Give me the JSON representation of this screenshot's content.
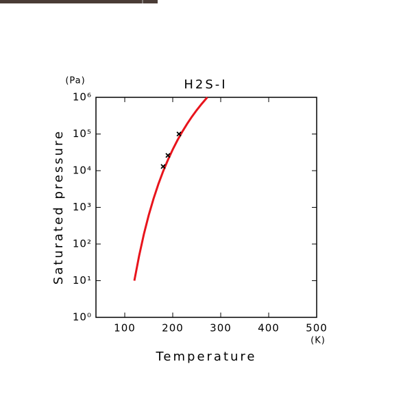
{
  "chart_data": {
    "type": "line",
    "title": "H2S-I",
    "x_label": "Temperature",
    "x_unit": "(K)",
    "y_label": "Saturated pressure",
    "y_unit": "(Pa)",
    "xlim": [
      40,
      500
    ],
    "xticks": [
      100,
      200,
      300,
      400,
      500
    ],
    "ylim": [
      1,
      1000000
    ],
    "y_log": true,
    "yticks": [
      {
        "value": 1,
        "label": "10⁰"
      },
      {
        "value": 10,
        "label": "10¹"
      },
      {
        "value": 100,
        "label": "10²"
      },
      {
        "value": 1000,
        "label": "10³"
      },
      {
        "value": 10000,
        "label": "10⁴"
      },
      {
        "value": 100000,
        "label": "10⁵"
      },
      {
        "value": 1000000,
        "label": "10⁶"
      }
    ],
    "series": [
      {
        "mode": "line",
        "color": "#e8141c",
        "x": [
          120,
          130,
          140,
          150,
          160,
          170,
          180,
          190,
          200,
          210,
          220,
          230,
          240,
          250,
          260,
          272
        ],
        "values": [
          10,
          48,
          189,
          614,
          1720,
          4270,
          9600,
          19700,
          37800,
          68200,
          116000,
          189000,
          297000,
          448000,
          654000,
          1000000
        ]
      },
      {
        "mode": "markers",
        "color": "#000000",
        "x": [
          180,
          190,
          213
        ],
        "values": [
          13000,
          26000,
          100000
        ]
      }
    ]
  }
}
